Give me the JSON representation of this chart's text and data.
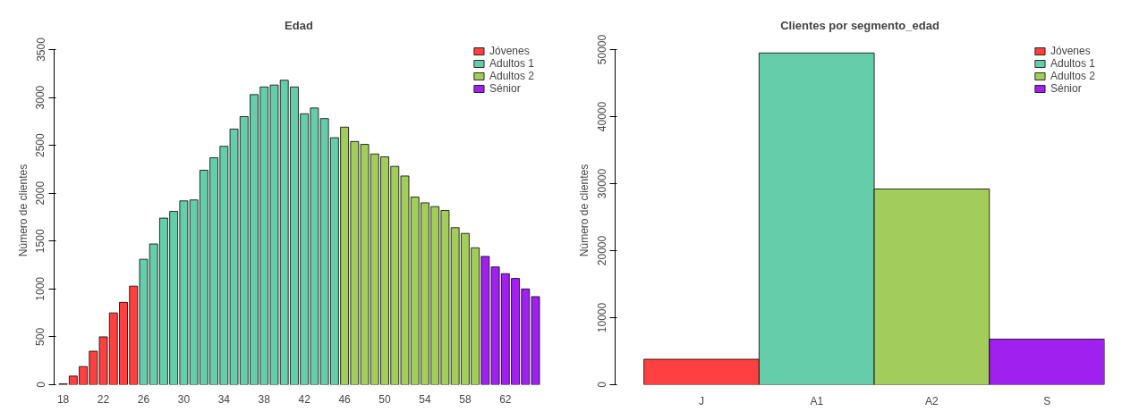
{
  "chart_data": [
    {
      "type": "bar",
      "title": "Edad",
      "ylabel": "Número de clientes",
      "legend": "top right",
      "grid": false,
      "categories": [
        "18",
        null,
        null,
        null,
        "22",
        null,
        null,
        null,
        "26",
        null,
        null,
        null,
        "30",
        null,
        null,
        null,
        "34",
        null,
        null,
        null,
        "38",
        null,
        null,
        null,
        "42",
        null,
        null,
        null,
        "46",
        null,
        null,
        null,
        "50",
        null,
        null,
        null,
        "54",
        null,
        null,
        null,
        "58",
        null,
        null,
        null,
        "62",
        null,
        null,
        null
      ],
      "ylim": [
        0,
        3500
      ],
      "yticks": [
        0,
        500,
        1000,
        1500,
        2000,
        2500,
        3000,
        3500
      ],
      "series": [
        {
          "name": "Jóvenes",
          "color": "#ff4040",
          "values": [
            10,
            90,
            190,
            350,
            500,
            750,
            860,
            1030,
            null,
            null,
            null,
            null,
            null,
            null,
            null,
            null,
            null,
            null,
            null,
            null,
            null,
            null,
            null,
            null,
            null,
            null,
            null,
            null,
            null,
            null,
            null,
            null,
            null,
            null,
            null,
            null,
            null,
            null,
            null,
            null,
            null,
            null,
            null,
            null,
            null,
            null,
            null,
            null
          ]
        },
        {
          "name": "Adultos 1",
          "color": "#66cdaa",
          "values": [
            null,
            null,
            null,
            null,
            null,
            null,
            null,
            null,
            1310,
            1470,
            1740,
            1810,
            1920,
            1930,
            2240,
            2370,
            2490,
            2670,
            2800,
            3030,
            3110,
            3130,
            3180,
            3110,
            2830,
            2890,
            2780,
            2580,
            null,
            null,
            null,
            null,
            null,
            null,
            null,
            null,
            null,
            null,
            null,
            null,
            null,
            null,
            null,
            null,
            null,
            null,
            null,
            null
          ]
        },
        {
          "name": "Adultos 2",
          "color": "#a2cd5a",
          "values": [
            null,
            null,
            null,
            null,
            null,
            null,
            null,
            null,
            null,
            null,
            null,
            null,
            null,
            null,
            null,
            null,
            null,
            null,
            null,
            null,
            null,
            null,
            null,
            null,
            null,
            null,
            null,
            null,
            2690,
            2540,
            2510,
            2410,
            2380,
            2280,
            2180,
            1960,
            1900,
            1860,
            1820,
            1640,
            1580,
            1430,
            null,
            null,
            null,
            null,
            null,
            null
          ]
        },
        {
          "name": "Sénior",
          "color": "#a020f0",
          "values": [
            null,
            null,
            null,
            null,
            null,
            null,
            null,
            null,
            null,
            null,
            null,
            null,
            null,
            null,
            null,
            null,
            null,
            null,
            null,
            null,
            null,
            null,
            null,
            null,
            null,
            null,
            null,
            null,
            null,
            null,
            null,
            null,
            null,
            null,
            null,
            null,
            null,
            null,
            null,
            null,
            null,
            null,
            1340,
            1230,
            1160,
            1110,
            1000,
            920
          ]
        }
      ]
    },
    {
      "type": "bar",
      "title": "Clientes por segmento_edad",
      "ylabel": "Número de clientes",
      "legend": "top right",
      "grid": false,
      "categories": [
        "J",
        "A1",
        "A2",
        "S"
      ],
      "ylim": [
        0,
        50000
      ],
      "yticks": [
        0,
        10000,
        20000,
        30000,
        40000,
        50000
      ],
      "series": [
        {
          "name": "Jóvenes",
          "color": "#ff4040",
          "values": [
            3800,
            null,
            null,
            null
          ]
        },
        {
          "name": "Adultos 1",
          "color": "#66cdaa",
          "values": [
            null,
            49500,
            null,
            null
          ]
        },
        {
          "name": "Adultos 2",
          "color": "#a2cd5a",
          "values": [
            null,
            null,
            29200,
            null
          ]
        },
        {
          "name": "Sénior",
          "color": "#a020f0",
          "values": [
            null,
            null,
            null,
            6800
          ]
        }
      ]
    }
  ]
}
